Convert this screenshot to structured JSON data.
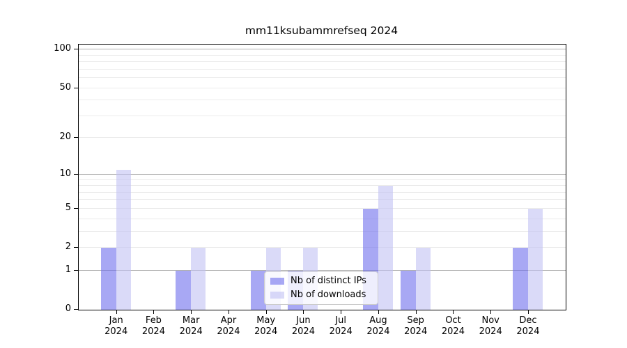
{
  "chart_data": {
    "type": "bar",
    "title": "mm11ksubammrefseq 2024",
    "categories": [
      "Jan",
      "Feb",
      "Mar",
      "Apr",
      "May",
      "Jun",
      "Jul",
      "Aug",
      "Sep",
      "Oct",
      "Nov",
      "Dec"
    ],
    "x_year_label": "2024",
    "series": [
      {
        "name": "Nb of distinct IPs",
        "color": "rgba(110,110,237,0.6)",
        "values": [
          2,
          0,
          1,
          0,
          1,
          1,
          0,
          5,
          1,
          0,
          0,
          2
        ]
      },
      {
        "name": "Nb of downloads",
        "color": "rgba(193,193,243,0.6)",
        "values": [
          11,
          0,
          2,
          0,
          2,
          2,
          0,
          8,
          2,
          0,
          0,
          5
        ]
      }
    ],
    "y_ticks": [
      0,
      1,
      2,
      5,
      10,
      20,
      50,
      100
    ],
    "y_scale": "log1p",
    "ylim": [
      0,
      109
    ],
    "major_gridlines": [
      1,
      10,
      100
    ],
    "minor_gridlines": [
      2,
      3,
      4,
      5,
      6,
      7,
      8,
      9,
      20,
      30,
      40,
      50,
      60,
      70,
      80,
      90
    ],
    "grid": true,
    "legend_position": "lower right inside plot",
    "frame_color": "#000000",
    "minor_grid_color": "#ebebeb",
    "major_grid_color": "#b0b0b0"
  }
}
